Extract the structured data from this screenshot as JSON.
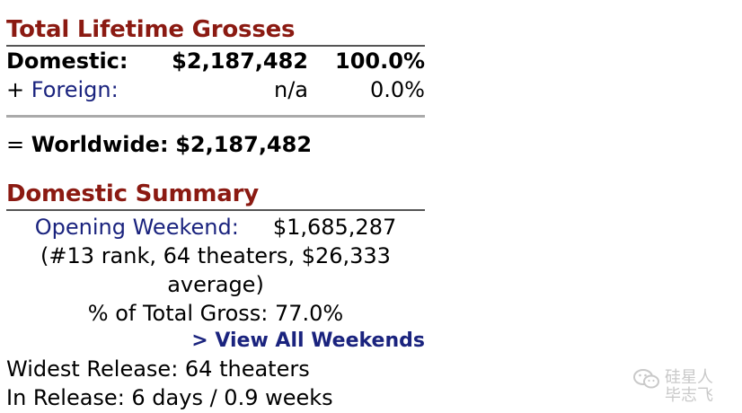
{
  "lifetime": {
    "title": "Total Lifetime Grosses",
    "domestic_label": "Domestic:",
    "domestic_amount": "$2,187,482",
    "domestic_pct": "100.0%",
    "foreign_prefix": "+",
    "foreign_label": "Foreign:",
    "foreign_amount": "n/a",
    "foreign_pct": "0.0%",
    "worldwide_prefix": "=",
    "worldwide_label": "Worldwide:",
    "worldwide_amount": "$2,187,482"
  },
  "summary": {
    "title": "Domestic Summary",
    "opening_label": "Opening Weekend:",
    "opening_amount": "$1,685,287",
    "opening_detail_1": "(#13 rank, 64 theaters, $26,333",
    "opening_detail_2": "average)",
    "pct_total": "% of Total Gross: 77.0%",
    "view_all": "> View All Weekends",
    "widest_release": "Widest Release: 64 theaters",
    "in_release": "In Release: 6 days / 0.9 weeks"
  },
  "watermark": {
    "icon": "wechat-icon",
    "line1": "硅星人",
    "line2": "毕志飞"
  }
}
